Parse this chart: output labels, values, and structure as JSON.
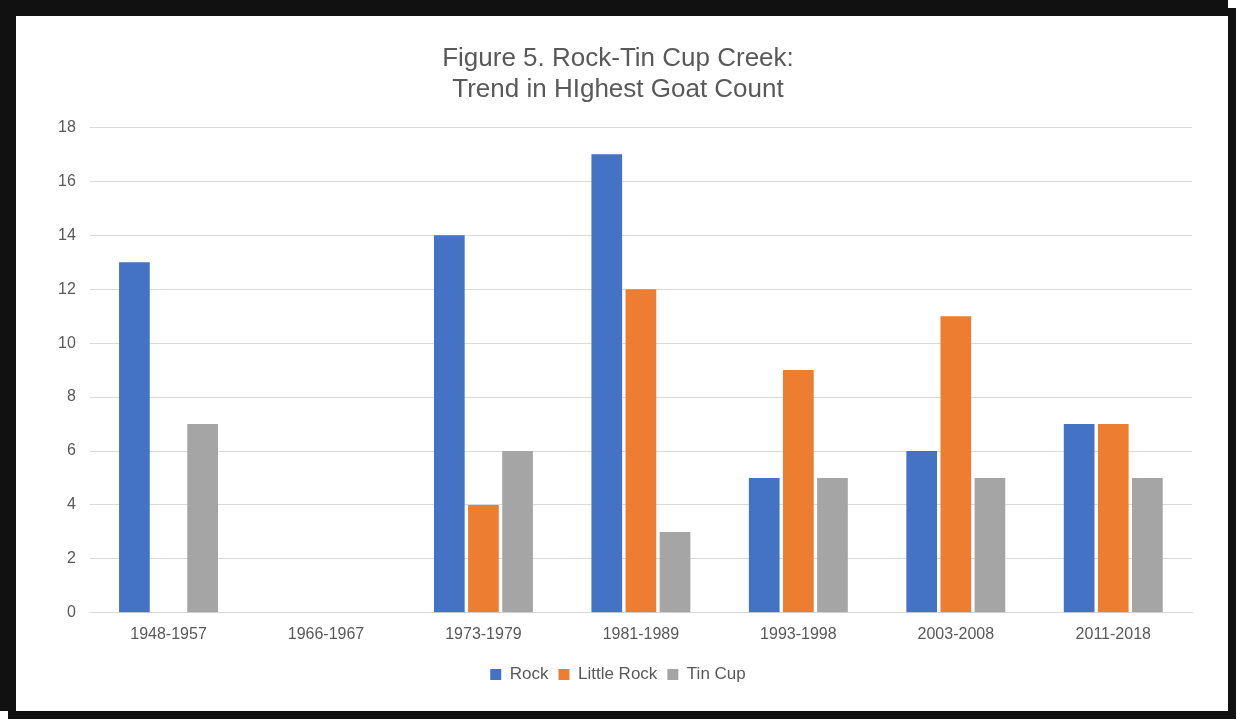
{
  "chart_data": {
    "type": "bar",
    "title": "Figure 5. Rock-Tin Cup Creek:\nTrend in HIghest Goat Count",
    "categories": [
      "1948-1957",
      "1966-1967",
      "1973-1979",
      "1981-1989",
      "1993-1998",
      "2003-2008",
      "2011-2018"
    ],
    "series": [
      {
        "name": "Rock",
        "color": "#4472c4",
        "values": [
          13,
          null,
          14,
          17,
          5,
          6,
          7
        ]
      },
      {
        "name": "Little Rock",
        "color": "#ed7d31",
        "values": [
          null,
          null,
          4,
          12,
          9,
          11,
          7
        ]
      },
      {
        "name": "Tin Cup",
        "color": "#a5a5a5",
        "values": [
          7,
          null,
          6,
          3,
          5,
          5,
          5
        ]
      }
    ],
    "ylim": [
      0,
      18
    ],
    "yticks": [
      0,
      2,
      4,
      6,
      8,
      10,
      12,
      14,
      16,
      18
    ],
    "grid": "y",
    "legend": "bottom"
  }
}
